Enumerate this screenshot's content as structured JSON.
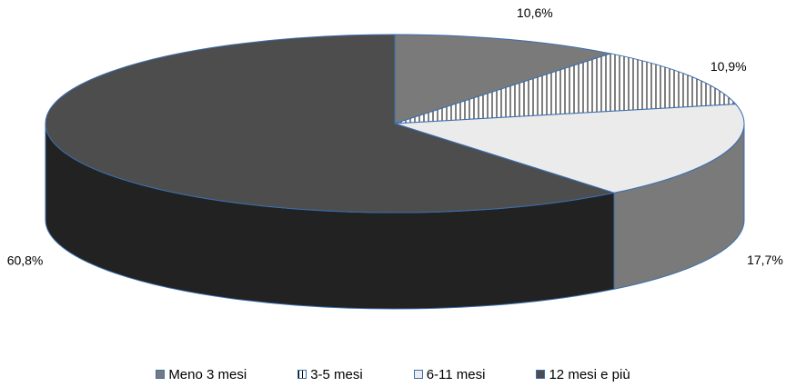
{
  "chart_data": {
    "type": "pie",
    "style": "3d",
    "title": "",
    "slices": [
      {
        "label": "Meno 3 mesi",
        "value": 10.6,
        "value_label": "10,6%",
        "color": "#7a7a7a",
        "side_color": "#7a7a7a",
        "pattern": "solid"
      },
      {
        "label": "3-5 mesi",
        "value": 10.9,
        "value_label": "10,9%",
        "color": "#ffffff",
        "side_color": "#ffffff",
        "pattern": "vertical-lines"
      },
      {
        "label": "6-11 mesi",
        "value": 17.7,
        "value_label": "17,7%",
        "color": "#ebebeb",
        "side_color": "#7a7a7a",
        "pattern": "solid"
      },
      {
        "label": "12 mesi e più",
        "value": 60.8,
        "value_label": "60,8%",
        "color": "#4d4d4d",
        "side_color": "#222222",
        "pattern": "solid"
      }
    ],
    "legend": {
      "position": "bottom",
      "items": [
        "Meno 3 mesi",
        "3-5 mesi",
        "6-11 mesi",
        "12 mesi e più"
      ]
    },
    "edge_color": "#3a6fb0"
  }
}
